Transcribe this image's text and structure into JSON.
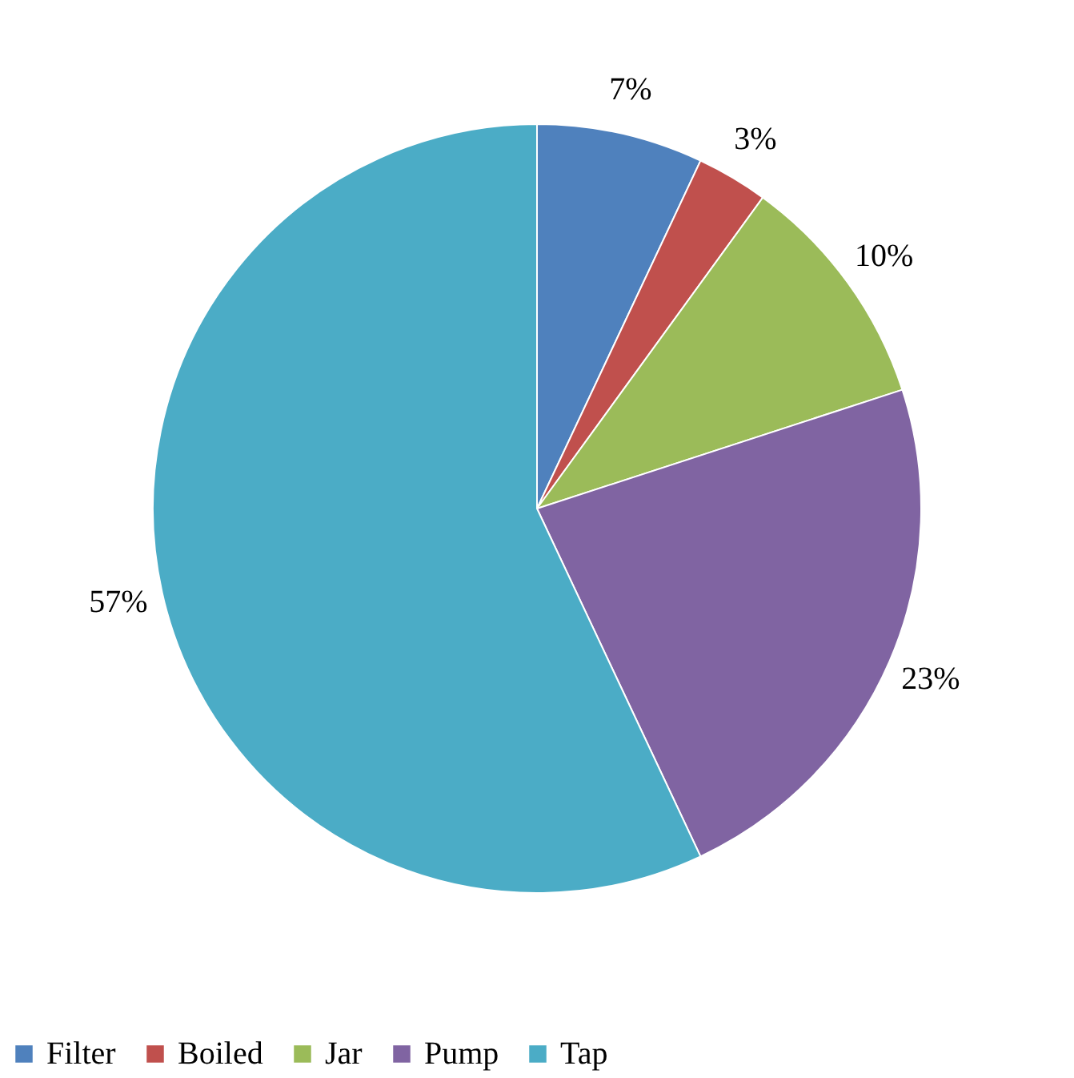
{
  "chart_data": {
    "type": "pie",
    "categories": [
      "Filter",
      "Boiled",
      "Jar",
      "Pump",
      "Tap"
    ],
    "values": [
      7,
      3,
      10,
      23,
      57
    ],
    "colors": [
      "#4f81bd",
      "#c0504d",
      "#9bbb59",
      "#8064a2",
      "#4bacc6"
    ],
    "value_labels": [
      "7%",
      "3%",
      "10%",
      "23%",
      "57%"
    ],
    "legend": "bottom"
  }
}
